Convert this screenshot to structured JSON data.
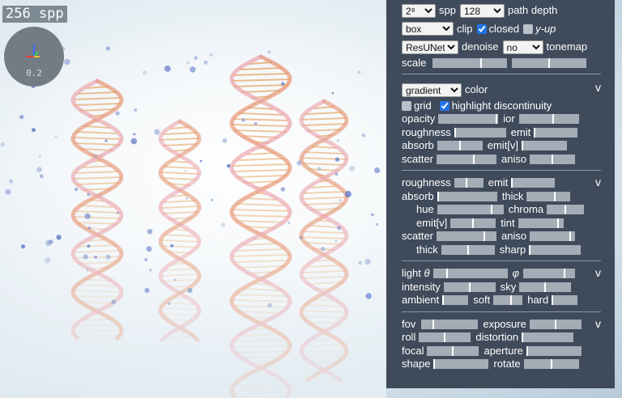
{
  "viewport": {
    "spp_counter": "256 spp",
    "gizmo_value": "0.2"
  },
  "panel": {
    "render": {
      "spp_select": "2⁸",
      "spp_label": "spp",
      "depth_select": "128",
      "depth_label": "path depth",
      "clip_select": "box",
      "clip_label": "clip",
      "closed_checked": true,
      "closed_label": "closed",
      "yup_checked": false,
      "yup_label": "y-up",
      "denoise_select": "ResUNet",
      "denoise_label": "denoise",
      "tonemap_select": "no",
      "tonemap_label": "tonemap",
      "scale_label": "scale",
      "scale_values": [
        0.65,
        0.5
      ]
    },
    "surface": {
      "color_select": "gradient",
      "color_label": "color",
      "collapse": "v",
      "grid_checked": false,
      "grid_label": "grid",
      "highlight_checked": true,
      "highlight_label": "highlight discontinuity",
      "opacity_label": "opacity",
      "opacity_value": 0.98,
      "ior_label": "ior",
      "ior_value": 0.58,
      "roughness_label": "roughness",
      "roughness_value": 0.0,
      "emit_label": "emit",
      "emit_value": 0.0,
      "absorb_label": "absorb",
      "absorb_value": 0.5,
      "emitv_label": "emit[v]",
      "emitv_value": 0.0,
      "scatter_label": "scatter",
      "scatter_value": 0.62,
      "aniso_label": "aniso",
      "aniso_value": 0.5
    },
    "volume": {
      "collapse": "v",
      "roughness_label": "roughness",
      "roughness_value": 0.42,
      "emit_label": "emit",
      "emit_value": 0.0,
      "absorb_label": "absorb",
      "absorb_value": 0.0,
      "thick_label": "thick",
      "thick_value": 0.65,
      "hue_label": "hue",
      "hue_value": 0.83,
      "chroma_label": "chroma",
      "chroma_value": 0.5,
      "emitv_label": "emit[v]",
      "emitv_value": 0.5,
      "tint_label": "tint",
      "tint_value": 0.9,
      "scatter_label": "scatter",
      "scatter_value": 0.8,
      "aniso_label": "aniso",
      "aniso_value": 0.9,
      "thick2_label": "thick",
      "thick2_value": 0.5,
      "sharp_label": "sharp",
      "sharp_value": 0.0
    },
    "lighting": {
      "collapse": "v",
      "light_theta_label": "light",
      "theta_symbol": "θ",
      "theta_value": 0.18,
      "phi_symbol": "φ",
      "phi_value": 0.8,
      "intensity_label": "intensity",
      "intensity_value": 0.5,
      "sky_label": "sky",
      "sky_value": 0.5,
      "ambient_label": "ambient",
      "ambient_value": 0.0,
      "soft_label": "soft",
      "soft_value": 0.6,
      "hard_label": "hard",
      "hard_value": 0.0
    },
    "camera": {
      "collapse": "v",
      "fov_label": "fov",
      "fov_value": 0.2,
      "exposure_label": "exposure",
      "exposure_value": 0.5,
      "roll_label": "roll",
      "roll_value": 0.5,
      "distortion_label": "distortion",
      "distortion_value": 0.0,
      "focal_label": "focal",
      "focal_value": 0.5,
      "aperture_label": "aperture",
      "aperture_value": 0.0,
      "shape_label": "shape",
      "shape_value": 0.0,
      "rotate_label": "rotate",
      "rotate_value": 0.5
    }
  }
}
